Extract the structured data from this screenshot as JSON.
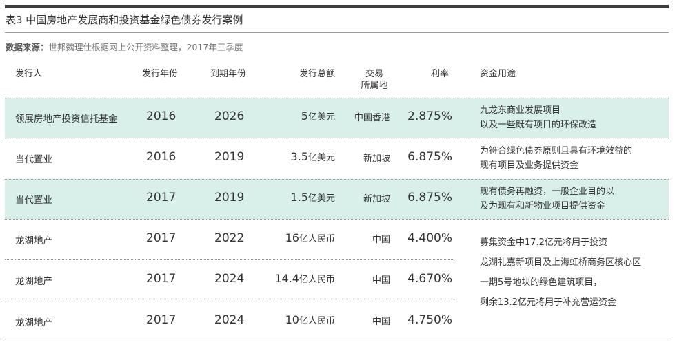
{
  "table": {
    "title": "表3  中国房地产发展商和投资基金绿色债券发行案例",
    "source_label": "数据来源：",
    "source_text": "世邦魏理仕根据网上公开资料整理，2017年三季度",
    "headers": {
      "issuer": "发行人",
      "issue_year": "发行年份",
      "maturity_year": "到期年份",
      "amount": "发行总额",
      "exchange_line1": "交易",
      "exchange_line2": "所属地",
      "rate": "利率",
      "use": "资金用途"
    },
    "rows": [
      {
        "issuer": "领展房地产投资信托基金",
        "issue_year": "2016",
        "maturity_year": "2026",
        "amount_num": "5",
        "amount_unit": "亿美元",
        "exchange": "中国香港",
        "rate": "2.875%",
        "use_line1": "九龙东商业发展项目",
        "use_line2": "以及一些既有项目的环保改造"
      },
      {
        "issuer": "当代置业",
        "issue_year": "2016",
        "maturity_year": "2019",
        "amount_num": "3.5",
        "amount_unit": "亿美元",
        "exchange": "新加坡",
        "rate": "6.875%",
        "use_line1": "为符合绿色债券原则且具有环境效益的",
        "use_line2": "现有项目及业务提供资金"
      },
      {
        "issuer": "当代置业",
        "issue_year": "2017",
        "maturity_year": "2019",
        "amount_num": "1.5",
        "amount_unit": "亿美元",
        "exchange": "新加坡",
        "rate": "6.875%",
        "use_line1": "现有债务再融资，一般企业目的以",
        "use_line2": "及为现有和新物业项目提供资金"
      },
      {
        "issuer": "龙湖地产",
        "issue_year": "2017",
        "maturity_year": "2022",
        "amount_num": "16",
        "amount_unit": "亿人民币",
        "exchange": "中国",
        "rate": "4.400%"
      },
      {
        "issuer": "龙湖地产",
        "issue_year": "2017",
        "maturity_year": "2024",
        "amount_num": "14.4",
        "amount_unit": "亿人民币",
        "exchange": "中国",
        "rate": "4.670%"
      },
      {
        "issuer": "龙湖地产",
        "issue_year": "2017",
        "maturity_year": "2024",
        "amount_num": "10",
        "amount_unit": "亿人民币",
        "exchange": "中国",
        "rate": "4.750%"
      }
    ],
    "merged_use": [
      "募集资金中17.2亿元将用于投资",
      "龙湖礼嘉新项目及上海虹桥商务区核心区",
      "一期5号地块的绿色建筑项目，",
      "剩余13.2亿元将用于补充营运资金"
    ],
    "band_color": "#d9f0ea"
  }
}
